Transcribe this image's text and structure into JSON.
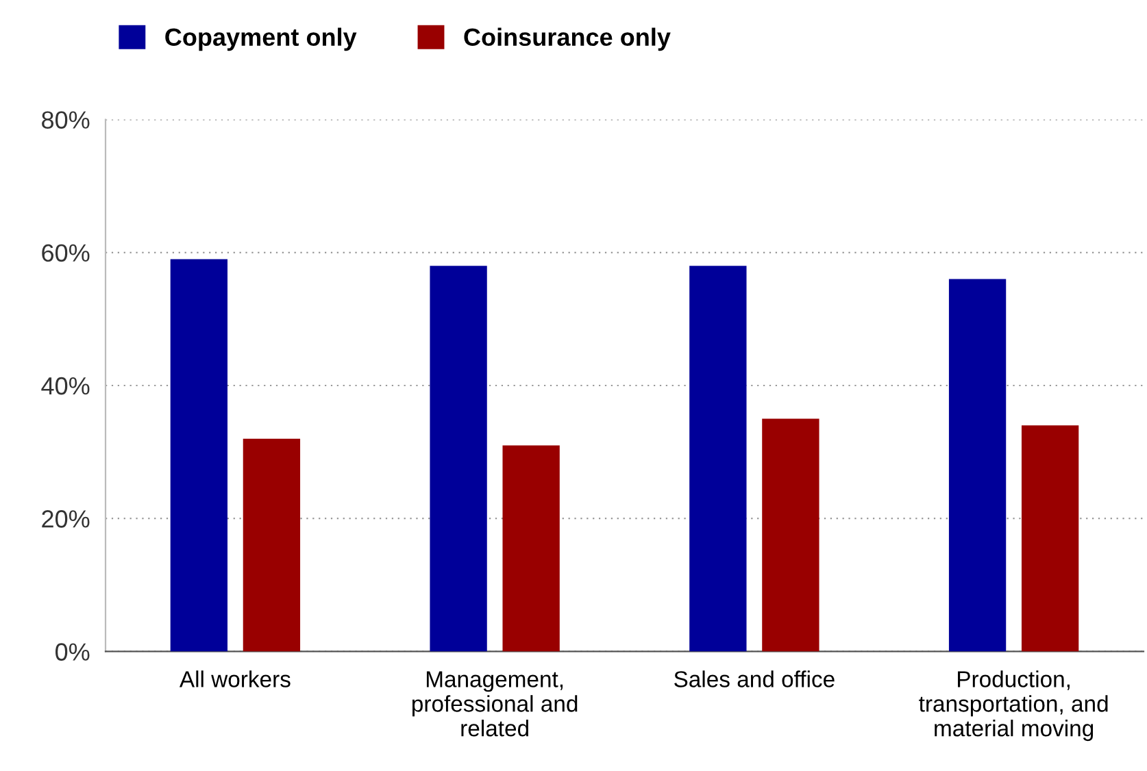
{
  "chart_data": {
    "type": "bar",
    "categories": [
      "All workers",
      "Management,\nprofessional and\nrelated",
      "Sales and office",
      "Production,\ntransportation, and\nmaterial moving"
    ],
    "series": [
      {
        "name": "Copayment only",
        "color": "#000099",
        "values": [
          59,
          58,
          58,
          56
        ]
      },
      {
        "name": "Coinsurance only",
        "color": "#990000",
        "values": [
          32,
          31,
          35,
          34
        ]
      }
    ],
    "ylim": [
      0,
      80
    ],
    "yticks": [
      {
        "value": 0,
        "label": "0%"
      },
      {
        "value": 20,
        "label": "20%"
      },
      {
        "value": 40,
        "label": "40%"
      },
      {
        "value": 60,
        "label": "60%"
      },
      {
        "value": 80,
        "label": "80%"
      }
    ],
    "grid": "y",
    "legend": "top left"
  }
}
